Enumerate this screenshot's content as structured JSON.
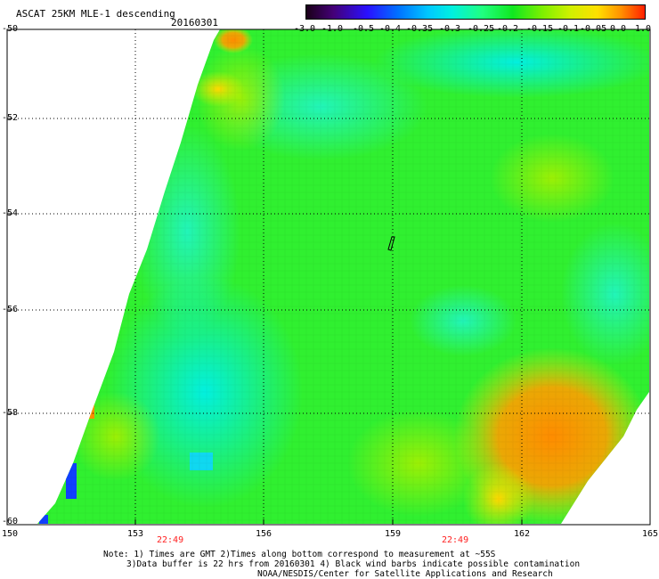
{
  "header": {
    "title": "ASCAT 25KM MLE-1 descending",
    "date": "20160301"
  },
  "colorbar": {
    "labels": [
      "-3.0",
      "-1.0",
      "-0.5",
      "-0.4",
      "-0.35",
      "-0.3",
      "-0.25",
      "-0.2",
      "-0.15",
      "-0.1",
      "-0.05",
      "0.0",
      "1.0"
    ],
    "colors": [
      "#1a0018",
      "#440077",
      "#2a10ff",
      "#0070ff",
      "#00c8ff",
      "#00f0e0",
      "#20ff80",
      "#10e820",
      "#80f000",
      "#d0f000",
      "#ffe000",
      "#ff9000",
      "#ff2000"
    ]
  },
  "map": {
    "lat_ticks": [
      "-50",
      "-52",
      "-54",
      "-56",
      "-58",
      "-60"
    ],
    "lon_ticks": [
      "150",
      "153",
      "156",
      "159",
      "162",
      "165"
    ],
    "pass_times": [
      "22:49",
      "22:49"
    ]
  },
  "footer": {
    "note_line1": "Note: 1) Times are GMT 2)Times along bottom correspond to measurement at ~55S",
    "note_line2": "3)Data buffer is 22 hrs from 20160301 4) Black wind barbs indicate possible contamination",
    "credit": "NOAA/NESDIS/Center for Satellite Applications and Research"
  }
}
